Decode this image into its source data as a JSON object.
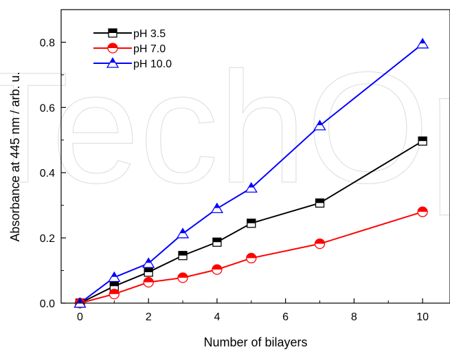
{
  "chart_data": {
    "type": "line",
    "xlabel": "Number of bilayers",
    "ylabel": "Absorbance at 445 nm / arb. u.",
    "xlim": [
      -0.55,
      10.8
    ],
    "ylim": [
      0.0,
      0.9
    ],
    "xticks": [
      0,
      2,
      4,
      6,
      8,
      10
    ],
    "xtick_labels": [
      "0",
      "2",
      "4",
      "6",
      "8",
      "10"
    ],
    "yticks": [
      0.0,
      0.2,
      0.4,
      0.6,
      0.8
    ],
    "ytick_labels": [
      "0.0",
      "0.2",
      "0.4",
      "0.6",
      "0.8"
    ],
    "grid": false,
    "legend_position": "top-left",
    "watermark": "TechOpen",
    "series": [
      {
        "name": "pH 3.5",
        "color": "#000000",
        "marker": "half-filled-square",
        "x": [
          0,
          1,
          2,
          3,
          4,
          5,
          7,
          10
        ],
        "y": [
          0.0,
          0.052,
          0.095,
          0.146,
          0.187,
          0.245,
          0.307,
          0.497
        ]
      },
      {
        "name": "pH 7.0",
        "color": "#ff0000",
        "marker": "half-filled-circle",
        "x": [
          0,
          1,
          2,
          3,
          4,
          5,
          7,
          10
        ],
        "y": [
          0.0,
          0.028,
          0.064,
          0.078,
          0.103,
          0.138,
          0.182,
          0.28
        ]
      },
      {
        "name": "pH 10.0",
        "color": "#0000ff",
        "marker": "half-filled-triangle",
        "x": [
          0,
          1,
          2,
          3,
          4,
          5,
          7,
          10
        ],
        "y": [
          0.0,
          0.079,
          0.122,
          0.213,
          0.29,
          0.353,
          0.544,
          0.795
        ]
      }
    ]
  }
}
